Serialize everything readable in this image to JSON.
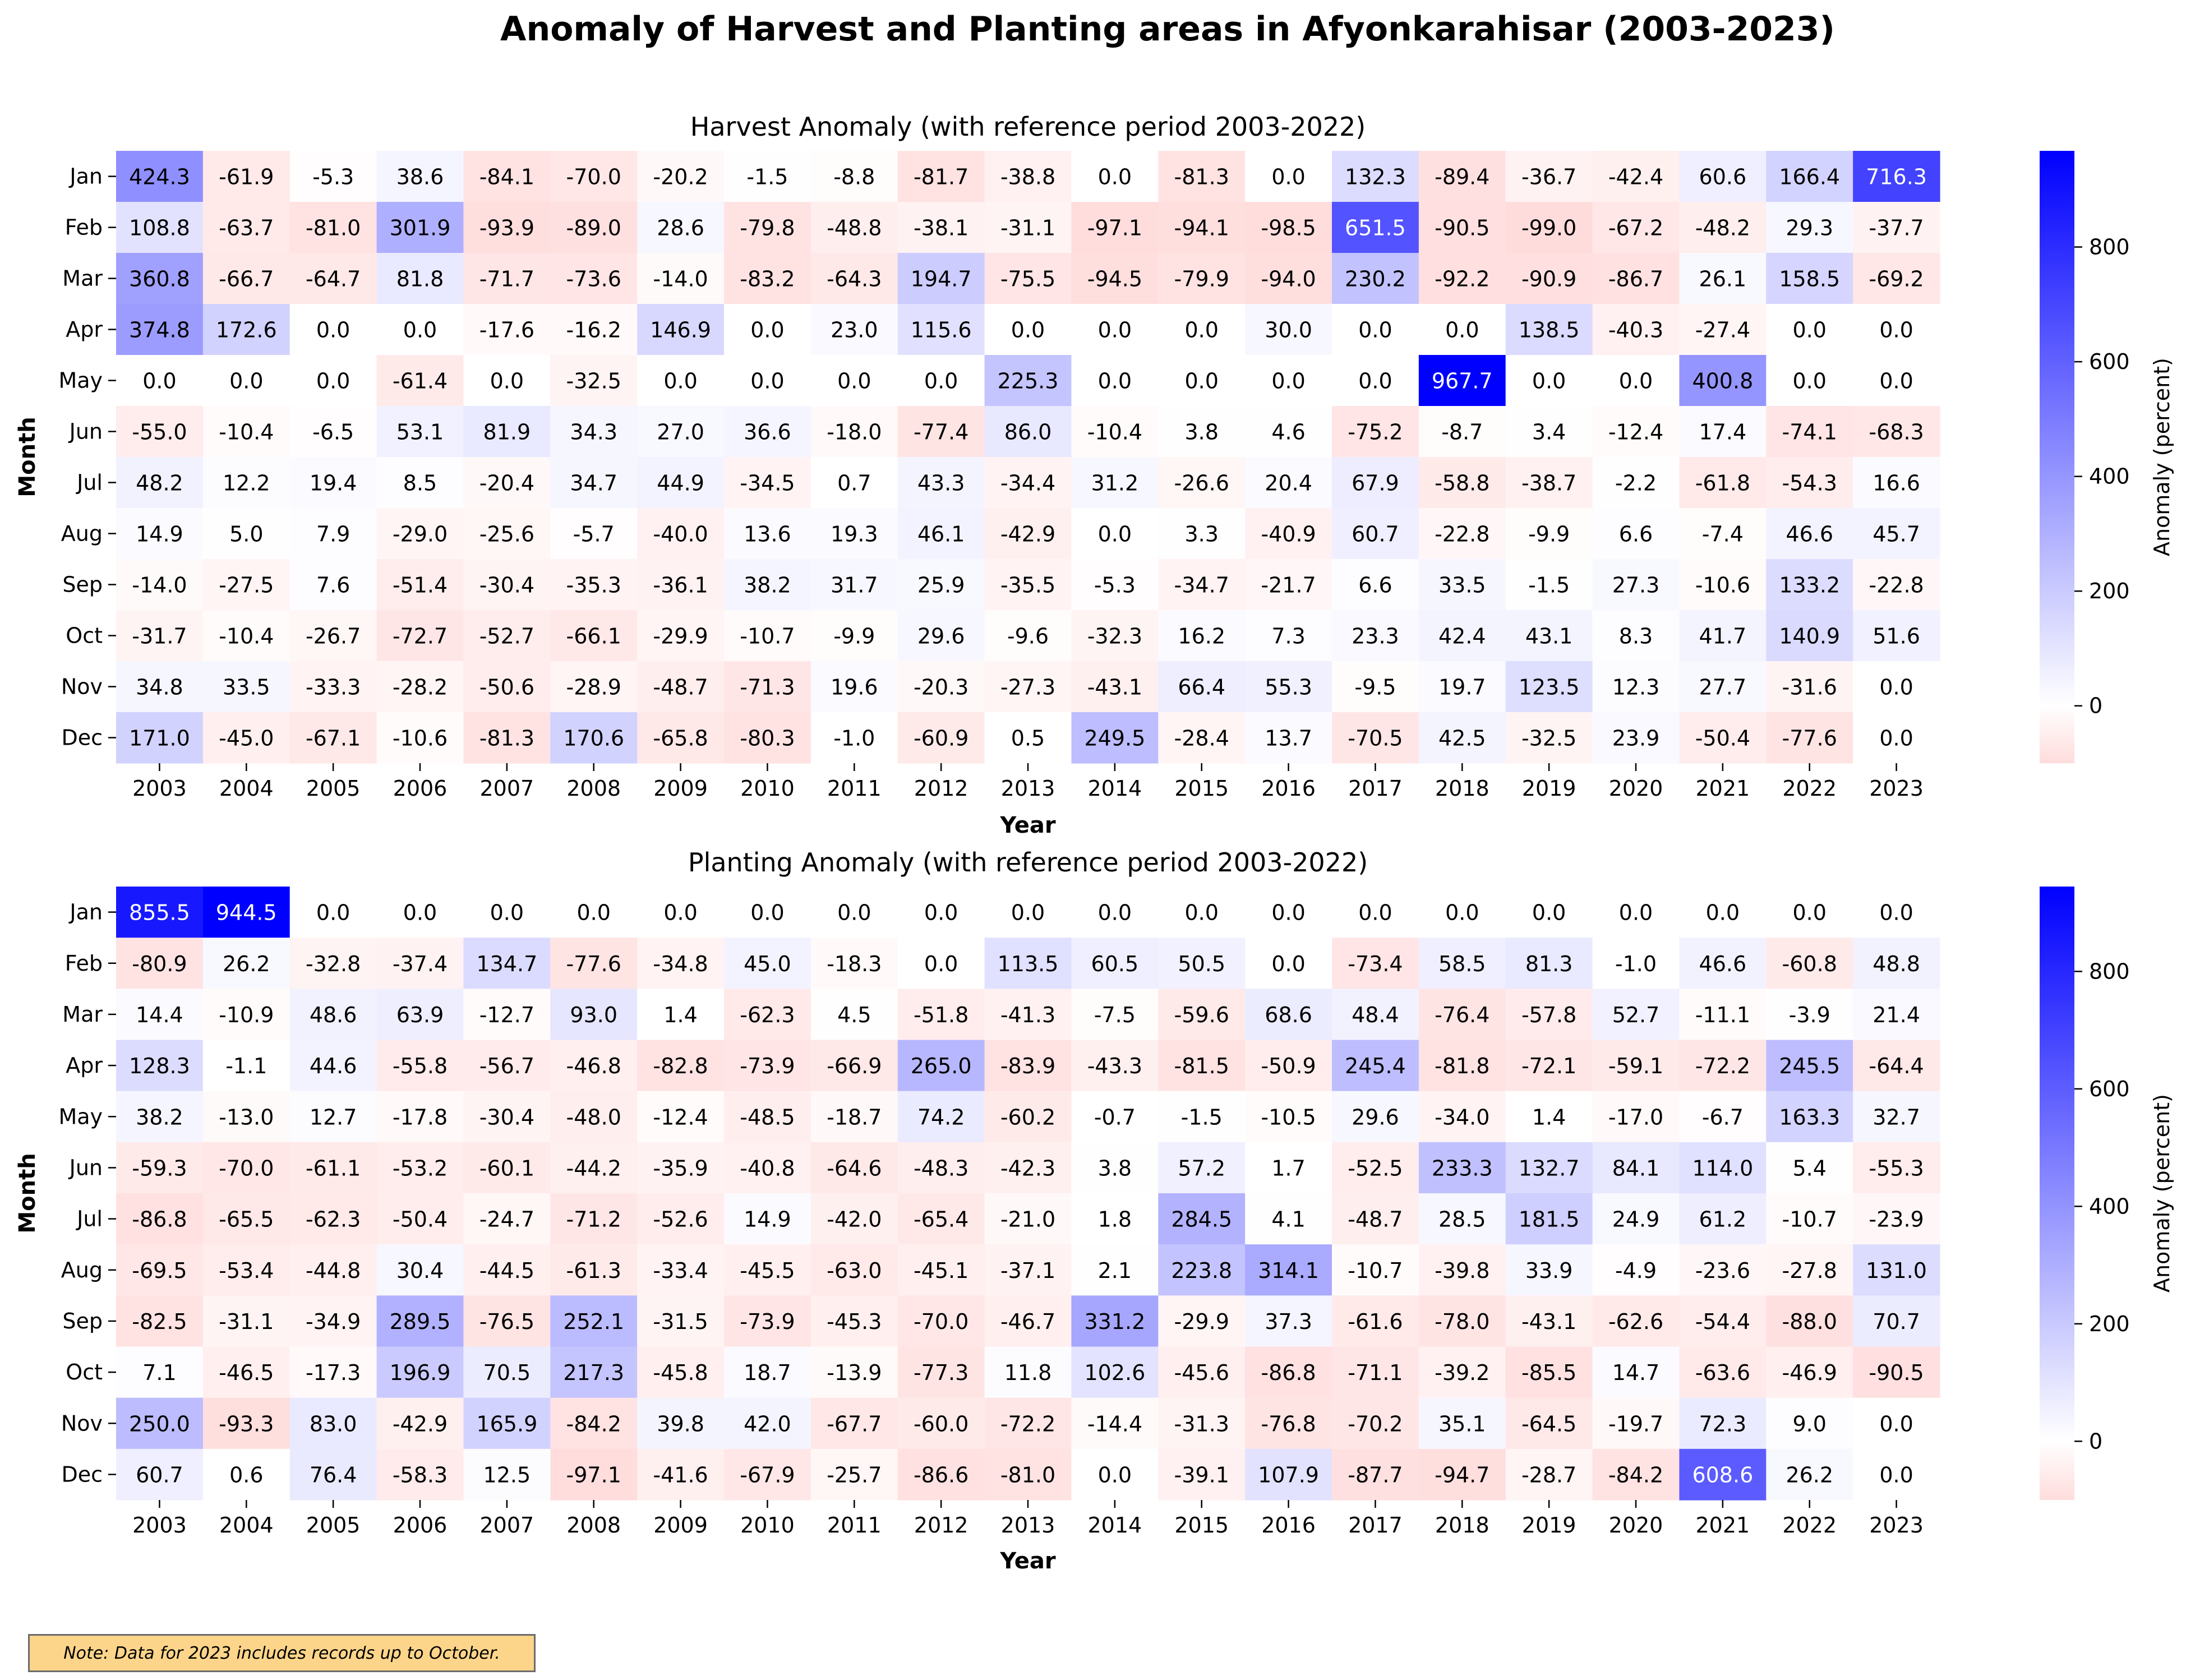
{
  "chart_data": [
    {
      "type": "heatmap",
      "suptitle": "Anomaly of Harvest and Planting areas in Afyonkarahisar (2003-2023)",
      "title": "Harvest Anomaly (with reference period 2003-2022)",
      "xlabel": "Year",
      "ylabel": "Month",
      "colorbar_label": "Anomaly (percent)",
      "colorbar_ticks": [
        0,
        200,
        400,
        600,
        800
      ],
      "vmin": -100,
      "vmax": 967.7,
      "color_low": "#ffdcdc",
      "color_mid": "#ffffff",
      "color_high": "#0000ff",
      "x": [
        "2003",
        "2004",
        "2005",
        "2006",
        "2007",
        "2008",
        "2009",
        "2010",
        "2011",
        "2012",
        "2013",
        "2014",
        "2015",
        "2016",
        "2017",
        "2018",
        "2019",
        "2020",
        "2021",
        "2022",
        "2023"
      ],
      "y": [
        "Jan",
        "Feb",
        "Mar",
        "Apr",
        "May",
        "Jun",
        "Jul",
        "Aug",
        "Sep",
        "Oct",
        "Nov",
        "Dec"
      ],
      "values": [
        [
          424.3,
          -61.9,
          -5.3,
          38.6,
          -84.1,
          -70.0,
          -20.2,
          -1.5,
          -8.8,
          -81.7,
          -38.8,
          0.0,
          -81.3,
          0.0,
          132.3,
          -89.4,
          -36.7,
          -42.4,
          60.6,
          166.4,
          716.3
        ],
        [
          108.8,
          -63.7,
          -81.0,
          301.9,
          -93.9,
          -89.0,
          28.6,
          -79.8,
          -48.8,
          -38.1,
          -31.1,
          -97.1,
          -94.1,
          -98.5,
          651.5,
          -90.5,
          -99.0,
          -67.2,
          -48.2,
          29.3,
          -37.7
        ],
        [
          360.8,
          -66.7,
          -64.7,
          81.8,
          -71.7,
          -73.6,
          -14.0,
          -83.2,
          -64.3,
          194.7,
          -75.5,
          -94.5,
          -79.9,
          -94.0,
          230.2,
          -92.2,
          -90.9,
          -86.7,
          26.1,
          158.5,
          -69.2
        ],
        [
          374.8,
          172.6,
          0.0,
          0.0,
          -17.6,
          -16.2,
          146.9,
          0.0,
          23.0,
          115.6,
          0.0,
          0.0,
          0.0,
          30.0,
          0.0,
          0.0,
          138.5,
          -40.3,
          -27.4,
          0.0,
          0.0
        ],
        [
          0.0,
          0.0,
          0.0,
          -61.4,
          0.0,
          -32.5,
          0.0,
          0.0,
          0.0,
          0.0,
          225.3,
          0.0,
          0.0,
          0.0,
          0.0,
          967.7,
          0.0,
          0.0,
          400.8,
          0.0,
          0.0
        ],
        [
          -55.0,
          -10.4,
          -6.5,
          53.1,
          81.9,
          34.3,
          27.0,
          36.6,
          -18.0,
          -77.4,
          86.0,
          -10.4,
          3.8,
          4.6,
          -75.2,
          -8.7,
          3.4,
          -12.4,
          17.4,
          -74.1,
          -68.3
        ],
        [
          48.2,
          12.2,
          19.4,
          8.5,
          -20.4,
          34.7,
          44.9,
          -34.5,
          0.7,
          43.3,
          -34.4,
          31.2,
          -26.6,
          20.4,
          67.9,
          -58.8,
          -38.7,
          -2.2,
          -61.8,
          -54.3,
          16.6
        ],
        [
          14.9,
          5.0,
          7.9,
          -29.0,
          -25.6,
          -5.7,
          -40.0,
          13.6,
          19.3,
          46.1,
          -42.9,
          0.0,
          3.3,
          -40.9,
          60.7,
          -22.8,
          -9.9,
          6.6,
          -7.4,
          46.6,
          45.7
        ],
        [
          -14.0,
          -27.5,
          7.6,
          -51.4,
          -30.4,
          -35.3,
          -36.1,
          38.2,
          31.7,
          25.9,
          -35.5,
          -5.3,
          -34.7,
          -21.7,
          6.6,
          33.5,
          -1.5,
          27.3,
          -10.6,
          133.2,
          -22.8
        ],
        [
          -31.7,
          -10.4,
          -26.7,
          -72.7,
          -52.7,
          -66.1,
          -29.9,
          -10.7,
          -9.9,
          29.6,
          -9.6,
          -32.3,
          16.2,
          7.3,
          23.3,
          42.4,
          43.1,
          8.3,
          41.7,
          140.9,
          51.6
        ],
        [
          34.8,
          33.5,
          -33.3,
          -28.2,
          -50.6,
          -28.9,
          -48.7,
          -71.3,
          19.6,
          -20.3,
          -27.3,
          -43.1,
          66.4,
          55.3,
          -9.5,
          19.7,
          123.5,
          12.3,
          27.7,
          -31.6,
          0.0
        ],
        [
          171.0,
          -45.0,
          -67.1,
          -10.6,
          -81.3,
          170.6,
          -65.8,
          -80.3,
          -1.0,
          -60.9,
          0.5,
          249.5,
          -28.4,
          13.7,
          -70.5,
          42.5,
          -32.5,
          23.9,
          -50.4,
          -77.6,
          0.0
        ]
      ]
    },
    {
      "type": "heatmap",
      "title": "Planting Anomaly (with reference period 2003-2022)",
      "xlabel": "Year",
      "ylabel": "Month",
      "colorbar_label": "Anomaly (percent)",
      "colorbar_ticks": [
        0,
        200,
        400,
        600,
        800
      ],
      "vmin": -100,
      "vmax": 944.5,
      "color_low": "#ffdcdc",
      "color_mid": "#ffffff",
      "color_high": "#0000ff",
      "x": [
        "2003",
        "2004",
        "2005",
        "2006",
        "2007",
        "2008",
        "2009",
        "2010",
        "2011",
        "2012",
        "2013",
        "2014",
        "2015",
        "2016",
        "2017",
        "2018",
        "2019",
        "2020",
        "2021",
        "2022",
        "2023"
      ],
      "y": [
        "Jan",
        "Feb",
        "Mar",
        "Apr",
        "May",
        "Jun",
        "Jul",
        "Aug",
        "Sep",
        "Oct",
        "Nov",
        "Dec"
      ],
      "values": [
        [
          855.5,
          944.5,
          0.0,
          0.0,
          0.0,
          0.0,
          0.0,
          0.0,
          0.0,
          0.0,
          0.0,
          0.0,
          0.0,
          0.0,
          0.0,
          0.0,
          0.0,
          0.0,
          0.0,
          0.0,
          0.0
        ],
        [
          -80.9,
          26.2,
          -32.8,
          -37.4,
          134.7,
          -77.6,
          -34.8,
          45.0,
          -18.3,
          0.0,
          113.5,
          60.5,
          50.5,
          0.0,
          -73.4,
          58.5,
          81.3,
          -1.0,
          46.6,
          -60.8,
          48.8
        ],
        [
          14.4,
          -10.9,
          48.6,
          63.9,
          -12.7,
          93.0,
          1.4,
          -62.3,
          4.5,
          -51.8,
          -41.3,
          -7.5,
          -59.6,
          68.6,
          48.4,
          -76.4,
          -57.8,
          52.7,
          -11.1,
          -3.9,
          21.4
        ],
        [
          128.3,
          -1.1,
          44.6,
          -55.8,
          -56.7,
          -46.8,
          -82.8,
          -73.9,
          -66.9,
          265.0,
          -83.9,
          -43.3,
          -81.5,
          -50.9,
          245.4,
          -81.8,
          -72.1,
          -59.1,
          -72.2,
          245.5,
          -64.4
        ],
        [
          38.2,
          -13.0,
          12.7,
          -17.8,
          -30.4,
          -48.0,
          -12.4,
          -48.5,
          -18.7,
          74.2,
          -60.2,
          -0.7,
          -1.5,
          -10.5,
          29.6,
          -34.0,
          1.4,
          -17.0,
          -6.7,
          163.3,
          32.7
        ],
        [
          -59.3,
          -70.0,
          -61.1,
          -53.2,
          -60.1,
          -44.2,
          -35.9,
          -40.8,
          -64.6,
          -48.3,
          -42.3,
          3.8,
          57.2,
          1.7,
          -52.5,
          233.3,
          132.7,
          84.1,
          114.0,
          5.4,
          -55.3
        ],
        [
          -86.8,
          -65.5,
          -62.3,
          -50.4,
          -24.7,
          -71.2,
          -52.6,
          14.9,
          -42.0,
          -65.4,
          -21.0,
          1.8,
          284.5,
          4.1,
          -48.7,
          28.5,
          181.5,
          24.9,
          61.2,
          -10.7,
          -23.9
        ],
        [
          -69.5,
          -53.4,
          -44.8,
          30.4,
          -44.5,
          -61.3,
          -33.4,
          -45.5,
          -63.0,
          -45.1,
          -37.1,
          2.1,
          223.8,
          314.1,
          -10.7,
          -39.8,
          33.9,
          -4.9,
          -23.6,
          -27.8,
          131.0
        ],
        [
          -82.5,
          -31.1,
          -34.9,
          289.5,
          -76.5,
          252.1,
          -31.5,
          -73.9,
          -45.3,
          -70.0,
          -46.7,
          331.2,
          -29.9,
          37.3,
          -61.6,
          -78.0,
          -43.1,
          -62.6,
          -54.4,
          -88.0,
          70.7
        ],
        [
          7.1,
          -46.5,
          -17.3,
          196.9,
          70.5,
          217.3,
          -45.8,
          18.7,
          -13.9,
          -77.3,
          11.8,
          102.6,
          -45.6,
          -86.8,
          -71.1,
          -39.2,
          -85.5,
          14.7,
          -63.6,
          -46.9,
          -90.5
        ],
        [
          250.0,
          -93.3,
          83.0,
          -42.9,
          165.9,
          -84.2,
          39.8,
          42.0,
          -67.7,
          -60.0,
          -72.2,
          -14.4,
          -31.3,
          -76.8,
          -70.2,
          35.1,
          -64.5,
          -19.7,
          72.3,
          9.0,
          0.0
        ],
        [
          60.7,
          0.6,
          76.4,
          -58.3,
          12.5,
          -97.1,
          -41.6,
          -67.9,
          -25.7,
          -86.6,
          -81.0,
          0.0,
          -39.1,
          107.9,
          -87.7,
          -94.7,
          -28.7,
          -84.2,
          608.6,
          26.2,
          0.0
        ]
      ]
    }
  ],
  "note": "Note: Data for 2023 includes records up to October."
}
